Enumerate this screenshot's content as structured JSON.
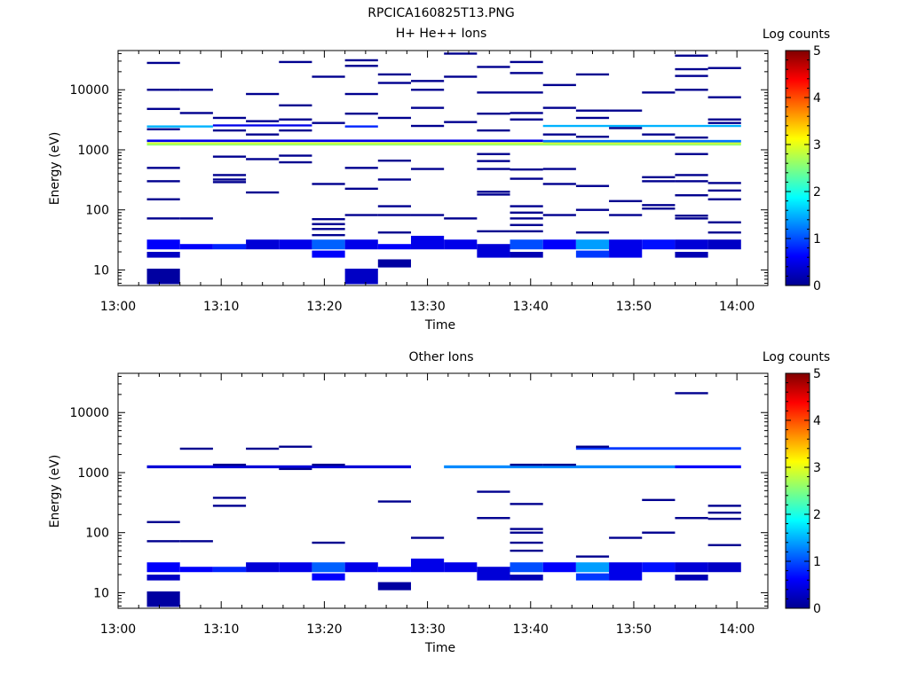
{
  "figure_title": "RPCICA160825T13.PNG",
  "chart_data": [
    {
      "type": "heatmap",
      "title": "H+ He++ Ions",
      "xlabel": "Time",
      "ylabel": "Energy (eV)",
      "colorbar_label": "Log counts",
      "colorbar_ticks": [
        "0",
        "1",
        "2",
        "3",
        "4",
        "5"
      ],
      "colorbar_range": [
        0,
        5
      ],
      "y_scale": "log",
      "ylim": [
        5.5,
        45000
      ],
      "y_ticks": [
        {
          "value": 10,
          "label": "10"
        },
        {
          "value": 100,
          "label": "100"
        },
        {
          "value": 1000,
          "label": "1000"
        },
        {
          "value": 10000,
          "label": "10000"
        }
      ],
      "xlim": [
        "13:00",
        "14:03"
      ],
      "x_ticks": [
        "13:00",
        "13:10",
        "13:20",
        "13:30",
        "13:40",
        "13:50",
        "14:00"
      ],
      "colormap": [
        "#00008f",
        "#0000ff",
        "#00ffff",
        "#ffff00",
        "#ff0000",
        "#800000"
      ],
      "cells": [
        {
          "t0": "13:02.8",
          "t1": "13:06.0",
          "e0": 22.0,
          "e1": 32.0,
          "v": 0.6
        },
        {
          "t0": "13:02.8",
          "t1": "13:06.0",
          "e0": 16.0,
          "e1": 20.0,
          "v": 0.3
        },
        {
          "t0": "13:02.8",
          "t1": "13:06.0",
          "e0": 5.8,
          "e1": 10.5,
          "v": 0.1
        },
        {
          "t0": "13:06.0",
          "t1": "13:09.2",
          "e0": 22.0,
          "e1": 27.0,
          "v": 0.6
        },
        {
          "t0": "13:09.2",
          "t1": "13:12.4",
          "e0": 22.0,
          "e1": 27.0,
          "v": 0.8
        },
        {
          "t0": "13:12.4",
          "t1": "13:15.6",
          "e0": 22.0,
          "e1": 32.0,
          "v": 0.4
        },
        {
          "t0": "13:15.6",
          "t1": "13:18.8",
          "e0": 22.0,
          "e1": 32.0,
          "v": 0.5
        },
        {
          "t0": "13:18.8",
          "t1": "13:22.0",
          "e0": 22.0,
          "e1": 32.0,
          "v": 1.1
        },
        {
          "t0": "13:18.8",
          "t1": "13:22.0",
          "e0": 16.0,
          "e1": 21.0,
          "v": 0.6
        },
        {
          "t0": "13:22.0",
          "t1": "13:25.2",
          "e0": 22.0,
          "e1": 32.0,
          "v": 0.5
        },
        {
          "t0": "13:22.0",
          "t1": "13:25.2",
          "e0": 5.8,
          "e1": 10.5,
          "v": 0.3
        },
        {
          "t0": "13:25.2",
          "t1": "13:28.4",
          "e0": 22.0,
          "e1": 27.0,
          "v": 0.6
        },
        {
          "t0": "13:25.2",
          "t1": "13:28.4",
          "e0": 11.0,
          "e1": 15.0,
          "v": 0.1
        },
        {
          "t0": "13:28.4",
          "t1": "13:31.6",
          "e0": 22.0,
          "e1": 37.0,
          "v": 0.5
        },
        {
          "t0": "13:31.6",
          "t1": "13:34.8",
          "e0": 22.0,
          "e1": 32.0,
          "v": 0.5
        },
        {
          "t0": "13:34.8",
          "t1": "13:38.0",
          "e0": 16.0,
          "e1": 27.0,
          "v": 0.4
        },
        {
          "t0": "13:38.0",
          "t1": "13:41.2",
          "e0": 22.0,
          "e1": 32.0,
          "v": 1.0
        },
        {
          "t0": "13:38.0",
          "t1": "13:41.2",
          "e0": 16.0,
          "e1": 20.0,
          "v": 0.2
        },
        {
          "t0": "13:41.2",
          "t1": "13:44.4",
          "e0": 22.0,
          "e1": 32.0,
          "v": 0.6
        },
        {
          "t0": "13:44.4",
          "t1": "13:47.6",
          "e0": 22.0,
          "e1": 32.0,
          "v": 1.4
        },
        {
          "t0": "13:44.4",
          "t1": "13:47.6",
          "e0": 16.0,
          "e1": 21.0,
          "v": 0.9
        },
        {
          "t0": "13:47.6",
          "t1": "13:50.8",
          "e0": 16.0,
          "e1": 32.0,
          "v": 0.5
        },
        {
          "t0": "13:50.8",
          "t1": "13:54.0",
          "e0": 22.0,
          "e1": 32.0,
          "v": 0.7
        },
        {
          "t0": "13:54.0",
          "t1": "13:57.2",
          "e0": 22.0,
          "e1": 32.0,
          "v": 0.4
        },
        {
          "t0": "13:54.0",
          "t1": "13:57.2",
          "e0": 16.0,
          "e1": 20.0,
          "v": 0.2
        },
        {
          "t0": "13:57.2",
          "t1": "14:00.4",
          "e0": 22.0,
          "e1": 32.0,
          "v": 0.3
        },
        {
          "t0": "13:02.8",
          "t1": "13:41.2",
          "e0": 1350,
          "e1": 1480,
          "v": 0.5
        },
        {
          "t0": "13:02.8",
          "t1": "14:00.4",
          "e0": 1180,
          "e1": 1250,
          "v": 2.6
        },
        {
          "t0": "13:02.8",
          "t1": "14:00.4",
          "e0": 1250,
          "e1": 1330,
          "v": 2.9
        },
        {
          "t0": "13:41.2",
          "t1": "14:00.4",
          "e0": 1330,
          "e1": 1460,
          "v": 1.2
        },
        {
          "t0": "13:02.8",
          "t1": "13:09.2",
          "e0": 2350,
          "e1": 2550,
          "v": 1.5
        },
        {
          "t0": "13:09.2",
          "t1": "13:18.8",
          "e0": 2450,
          "e1": 2650,
          "v": 0.5
        },
        {
          "t0": "13:22.0",
          "t1": "13:25.2",
          "e0": 2350,
          "e1": 2550,
          "v": 0.8
        },
        {
          "t0": "13:41.2",
          "t1": "14:00.4",
          "e0": 2400,
          "e1": 2600,
          "v": 1.5
        }
      ],
      "bands": [
        {
          "t0": "13:02.8",
          "t1": "13:06.0",
          "e": [
            28000,
            10000,
            4800,
            2200,
            500,
            300,
            150,
            72
          ]
        },
        {
          "t0": "13:06.0",
          "t1": "13:09.2",
          "e": [
            10000,
            4100,
            72
          ]
        },
        {
          "t0": "13:09.2",
          "t1": "13:12.4",
          "e": [
            3400,
            2100,
            770,
            380,
            320,
            290
          ]
        },
        {
          "t0": "13:12.4",
          "t1": "13:15.6",
          "e": [
            8500,
            3000,
            1800,
            700,
            195
          ]
        },
        {
          "t0": "13:15.6",
          "t1": "13:18.8",
          "e": [
            29000,
            5500,
            3200,
            2100,
            800,
            620
          ]
        },
        {
          "t0": "13:18.8",
          "t1": "13:22.0",
          "e": [
            16500,
            2800,
            270,
            70,
            58,
            48,
            38
          ]
        },
        {
          "t0": "13:22.0",
          "t1": "13:25.2",
          "e": [
            31000,
            25000,
            8500,
            4000,
            500,
            225,
            82
          ]
        },
        {
          "t0": "13:25.2",
          "t1": "13:28.4",
          "e": [
            18000,
            13000,
            3400,
            660,
            320,
            115,
            82,
            42
          ]
        },
        {
          "t0": "13:28.4",
          "t1": "13:31.6",
          "e": [
            14000,
            10000,
            5000,
            2500,
            480,
            82
          ]
        },
        {
          "t0": "13:31.6",
          "t1": "13:34.8",
          "e": [
            40000,
            16500,
            2900,
            72
          ]
        },
        {
          "t0": "13:34.8",
          "t1": "13:38.0",
          "e": [
            24000,
            9000,
            4000,
            2100,
            850,
            650,
            480,
            200,
            180,
            44
          ]
        },
        {
          "t0": "13:38.0",
          "t1": "13:41.2",
          "e": [
            29000,
            19000,
            9000,
            4100,
            3200,
            470,
            330,
            115,
            90,
            72,
            56,
            44
          ]
        },
        {
          "t0": "13:41.2",
          "t1": "13:44.4",
          "e": [
            12000,
            5000,
            1800,
            480,
            270,
            82
          ]
        },
        {
          "t0": "13:44.4",
          "t1": "13:47.6",
          "e": [
            18000,
            4500,
            3400,
            1650,
            250,
            100,
            42
          ]
        },
        {
          "t0": "13:47.6",
          "t1": "13:50.8",
          "e": [
            4500,
            2300,
            140,
            82
          ]
        },
        {
          "t0": "13:50.8",
          "t1": "13:54.0",
          "e": [
            9000,
            1800,
            350,
            300,
            120,
            105
          ]
        },
        {
          "t0": "13:54.0",
          "t1": "13:57.2",
          "e": [
            10000,
            1600,
            380,
            175,
            80,
            72
          ]
        },
        {
          "t0": "13:54.0",
          "t1": "13:57.2",
          "e": [
            37000,
            22000,
            17000,
            850,
            300
          ]
        },
        {
          "t0": "13:57.2",
          "t1": "14:00.4",
          "e": [
            23000,
            7500,
            3200,
            2800,
            280,
            210,
            150,
            62,
            42
          ]
        }
      ]
    },
    {
      "type": "heatmap",
      "title": "Other Ions",
      "xlabel": "Time",
      "ylabel": "Energy (eV)",
      "colorbar_label": "Log counts",
      "colorbar_ticks": [
        "0",
        "1",
        "2",
        "3",
        "4",
        "5"
      ],
      "colorbar_range": [
        0,
        5
      ],
      "y_scale": "log",
      "ylim": [
        5.5,
        45000
      ],
      "y_ticks": [
        {
          "value": 10,
          "label": "10"
        },
        {
          "value": 100,
          "label": "100"
        },
        {
          "value": 1000,
          "label": "1000"
        },
        {
          "value": 10000,
          "label": "10000"
        }
      ],
      "xlim": [
        "13:00",
        "14:03"
      ],
      "x_ticks": [
        "13:00",
        "13:10",
        "13:20",
        "13:30",
        "13:40",
        "13:50",
        "14:00"
      ],
      "colormap": [
        "#00008f",
        "#0000ff",
        "#00ffff",
        "#ffff00",
        "#ff0000",
        "#800000"
      ],
      "cells": [
        {
          "t0": "13:02.8",
          "t1": "13:06.0",
          "e0": 22.0,
          "e1": 32.0,
          "v": 0.6
        },
        {
          "t0": "13:02.8",
          "t1": "13:06.0",
          "e0": 16.0,
          "e1": 20.0,
          "v": 0.3
        },
        {
          "t0": "13:02.8",
          "t1": "13:06.0",
          "e0": 5.8,
          "e1": 10.5,
          "v": 0.1
        },
        {
          "t0": "13:06.0",
          "t1": "13:09.2",
          "e0": 22.0,
          "e1": 27.0,
          "v": 0.6
        },
        {
          "t0": "13:09.2",
          "t1": "13:12.4",
          "e0": 22.0,
          "e1": 27.0,
          "v": 0.8
        },
        {
          "t0": "13:12.4",
          "t1": "13:15.6",
          "e0": 22.0,
          "e1": 32.0,
          "v": 0.4
        },
        {
          "t0": "13:15.6",
          "t1": "13:18.8",
          "e0": 22.0,
          "e1": 32.0,
          "v": 0.5
        },
        {
          "t0": "13:18.8",
          "t1": "13:22.0",
          "e0": 22.0,
          "e1": 32.0,
          "v": 1.1
        },
        {
          "t0": "13:18.8",
          "t1": "13:22.0",
          "e0": 16.0,
          "e1": 21.0,
          "v": 0.6
        },
        {
          "t0": "13:22.0",
          "t1": "13:25.2",
          "e0": 22.0,
          "e1": 32.0,
          "v": 0.5
        },
        {
          "t0": "13:25.2",
          "t1": "13:28.4",
          "e0": 22.0,
          "e1": 27.0,
          "v": 0.6
        },
        {
          "t0": "13:25.2",
          "t1": "13:28.4",
          "e0": 11.0,
          "e1": 15.0,
          "v": 0.1
        },
        {
          "t0": "13:28.4",
          "t1": "13:31.6",
          "e0": 22.0,
          "e1": 37.0,
          "v": 0.5
        },
        {
          "t0": "13:31.6",
          "t1": "13:34.8",
          "e0": 22.0,
          "e1": 32.0,
          "v": 0.5
        },
        {
          "t0": "13:34.8",
          "t1": "13:38.0",
          "e0": 16.0,
          "e1": 27.0,
          "v": 0.4
        },
        {
          "t0": "13:38.0",
          "t1": "13:41.2",
          "e0": 22.0,
          "e1": 32.0,
          "v": 1.0
        },
        {
          "t0": "13:38.0",
          "t1": "13:41.2",
          "e0": 16.0,
          "e1": 20.0,
          "v": 0.2
        },
        {
          "t0": "13:41.2",
          "t1": "13:44.4",
          "e0": 22.0,
          "e1": 32.0,
          "v": 0.6
        },
        {
          "t0": "13:44.4",
          "t1": "13:47.6",
          "e0": 22.0,
          "e1": 32.0,
          "v": 1.4
        },
        {
          "t0": "13:44.4",
          "t1": "13:47.6",
          "e0": 16.0,
          "e1": 21.0,
          "v": 0.9
        },
        {
          "t0": "13:47.6",
          "t1": "13:50.8",
          "e0": 16.0,
          "e1": 32.0,
          "v": 0.5
        },
        {
          "t0": "13:50.8",
          "t1": "13:54.0",
          "e0": 22.0,
          "e1": 32.0,
          "v": 0.7
        },
        {
          "t0": "13:54.0",
          "t1": "13:57.2",
          "e0": 22.0,
          "e1": 32.0,
          "v": 0.4
        },
        {
          "t0": "13:54.0",
          "t1": "13:57.2",
          "e0": 16.0,
          "e1": 20.0,
          "v": 0.2
        },
        {
          "t0": "13:57.2",
          "t1": "14:00.4",
          "e0": 22.0,
          "e1": 32.0,
          "v": 0.3
        },
        {
          "t0": "13:02.8",
          "t1": "13:28.4",
          "e0": 1180,
          "e1": 1320,
          "v": 0.4
        },
        {
          "t0": "13:31.6",
          "t1": "13:54.0",
          "e0": 1180,
          "e1": 1320,
          "v": 1.3
        },
        {
          "t0": "13:54.0",
          "t1": "14:00.4",
          "e0": 1180,
          "e1": 1320,
          "v": 0.6
        },
        {
          "t0": "13:44.4",
          "t1": "14:00.4",
          "e0": 2400,
          "e1": 2650,
          "v": 0.9
        }
      ],
      "bands": [
        {
          "t0": "13:02.8",
          "t1": "13:06.0",
          "e": [
            150,
            72
          ]
        },
        {
          "t0": "13:06.0",
          "t1": "13:09.2",
          "e": [
            2500,
            72
          ]
        },
        {
          "t0": "13:09.2",
          "t1": "13:12.4",
          "e": [
            1350,
            380,
            280
          ]
        },
        {
          "t0": "13:12.4",
          "t1": "13:15.6",
          "e": [
            2500
          ]
        },
        {
          "t0": "13:15.6",
          "t1": "13:18.8",
          "e": [
            2700,
            1150
          ]
        },
        {
          "t0": "13:18.8",
          "t1": "13:22.0",
          "e": [
            1350,
            68
          ]
        },
        {
          "t0": "13:25.2",
          "t1": "13:28.4",
          "e": [
            330
          ]
        },
        {
          "t0": "13:28.4",
          "t1": "13:31.6",
          "e": [
            82
          ]
        },
        {
          "t0": "13:34.8",
          "t1": "13:38.0",
          "e": [
            480,
            175
          ]
        },
        {
          "t0": "13:38.0",
          "t1": "13:41.2",
          "e": [
            1350,
            300,
            115,
            100,
            68,
            50
          ]
        },
        {
          "t0": "13:41.2",
          "t1": "13:44.4",
          "e": [
            1350
          ]
        },
        {
          "t0": "13:44.4",
          "t1": "13:47.6",
          "e": [
            2700,
            40
          ]
        },
        {
          "t0": "13:47.6",
          "t1": "13:50.8",
          "e": [
            82
          ]
        },
        {
          "t0": "13:50.8",
          "t1": "13:54.0",
          "e": [
            350,
            100
          ]
        },
        {
          "t0": "13:54.0",
          "t1": "13:57.2",
          "e": [
            21000,
            175
          ]
        },
        {
          "t0": "13:57.2",
          "t1": "14:00.4",
          "e": [
            280,
            215,
            170,
            62
          ]
        }
      ]
    }
  ]
}
